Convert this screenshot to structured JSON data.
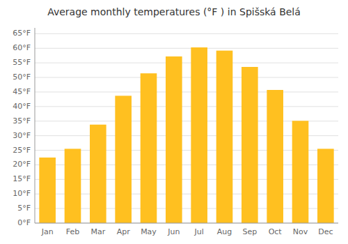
{
  "chart_data": {
    "type": "bar",
    "title": "Average monthly temperatures (°F ) in Spišská Belá",
    "categories": [
      "Jan",
      "Feb",
      "Mar",
      "Apr",
      "May",
      "Jun",
      "Jul",
      "Aug",
      "Sep",
      "Oct",
      "Nov",
      "Dec"
    ],
    "values": [
      22.5,
      25.5,
      33.8,
      43.7,
      51.4,
      57.2,
      60.3,
      59.2,
      53.6,
      45.7,
      35.1,
      25.5
    ],
    "color": "#FFC020",
    "ylim": [
      0,
      67
    ],
    "yticks": [
      {
        "value": 0,
        "label": "0°F"
      },
      {
        "value": 5,
        "label": "5°F"
      },
      {
        "value": 10,
        "label": "10°F"
      },
      {
        "value": 15,
        "label": "15°F"
      },
      {
        "value": 20,
        "label": "20°F"
      },
      {
        "value": 25,
        "label": "25°F"
      },
      {
        "value": 30,
        "label": "30°F"
      },
      {
        "value": 35,
        "label": "35°F"
      },
      {
        "value": 40,
        "label": "40°F"
      },
      {
        "value": 45,
        "label": "45°F"
      },
      {
        "value": 50,
        "label": "50°F"
      },
      {
        "value": 55,
        "label": "55°F"
      },
      {
        "value": 60,
        "label": "60°F"
      },
      {
        "value": 65,
        "label": "65°F"
      }
    ],
    "grid": true
  }
}
